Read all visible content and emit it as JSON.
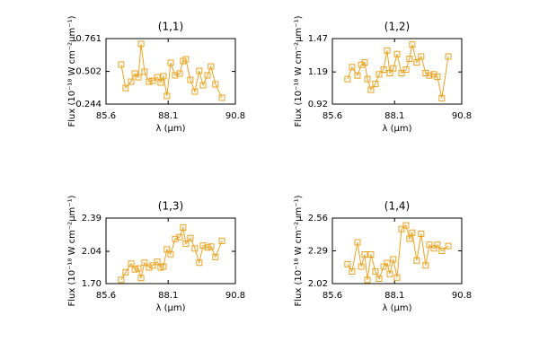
{
  "chart_data": [
    {
      "type": "line",
      "title": "(1,1)",
      "xlabel": "λ (μm)",
      "ylabel": "Flux (10⁻¹⁸ W cm⁻²μm⁻¹)",
      "color": "#eba21e",
      "x": [
        86.21,
        86.39,
        86.61,
        86.76,
        86.9,
        87.01,
        87.15,
        87.33,
        87.48,
        87.66,
        87.8,
        87.91,
        88.05,
        88.2,
        88.38,
        88.56,
        88.7,
        88.81,
        88.99,
        89.17,
        89.35,
        89.5,
        89.68,
        89.82,
        90.0,
        90.26
      ],
      "values": [
        0.556,
        0.371,
        0.421,
        0.485,
        0.456,
        0.719,
        0.499,
        0.421,
        0.428,
        0.456,
        0.414,
        0.464,
        0.308,
        0.57,
        0.471,
        0.485,
        0.584,
        0.598,
        0.435,
        0.343,
        0.506,
        0.393,
        0.471,
        0.541,
        0.4,
        0.294
      ],
      "xlim": [
        85.6,
        90.8
      ],
      "xticks": [
        85.6,
        88.1,
        90.8
      ],
      "ylim": [
        0.244,
        0.761
      ],
      "yticks": [
        0.244,
        0.502,
        0.761
      ]
    },
    {
      "type": "line",
      "title": "(1,2)",
      "xlabel": "λ (μm)",
      "ylabel": "Flux (10⁻¹⁸ W cm⁻²μm⁻¹)",
      "color": "#eba21e",
      "x": [
        86.21,
        86.39,
        86.61,
        86.76,
        86.9,
        87.01,
        87.15,
        87.33,
        87.48,
        87.66,
        87.8,
        87.91,
        88.05,
        88.2,
        88.38,
        88.56,
        88.7,
        88.81,
        88.99,
        89.17,
        89.35,
        89.5,
        89.68,
        89.82,
        90.0,
        90.26
      ],
      "values": [
        1.13,
        1.23,
        1.16,
        1.25,
        1.27,
        1.13,
        1.04,
        1.09,
        1.17,
        1.21,
        1.37,
        1.18,
        1.22,
        1.34,
        1.18,
        1.21,
        1.3,
        1.42,
        1.27,
        1.32,
        1.18,
        1.16,
        1.17,
        1.15,
        0.97,
        1.32
      ],
      "xlim": [
        85.6,
        90.8
      ],
      "xticks": [
        85.6,
        88.1,
        90.8
      ],
      "ylim": [
        0.92,
        1.47
      ],
      "yticks": [
        0.92,
        1.19,
        1.47
      ]
    },
    {
      "type": "line",
      "title": "(1,3)",
      "xlabel": "λ (μm)",
      "ylabel": "Flux (10⁻¹⁸ W cm⁻²μm⁻¹)",
      "color": "#eba21e",
      "x": [
        86.21,
        86.39,
        86.61,
        86.76,
        86.9,
        87.01,
        87.15,
        87.33,
        87.48,
        87.66,
        87.8,
        87.91,
        88.05,
        88.2,
        88.38,
        88.56,
        88.7,
        88.81,
        88.99,
        89.17,
        89.35,
        89.5,
        89.68,
        89.82,
        90.0,
        90.26
      ],
      "values": [
        1.74,
        1.82,
        1.91,
        1.85,
        1.86,
        1.76,
        1.92,
        1.87,
        1.89,
        1.93,
        1.87,
        1.88,
        2.06,
        2.01,
        2.17,
        2.19,
        2.29,
        2.12,
        2.18,
        2.07,
        1.92,
        2.1,
        2.08,
        2.09,
        1.98,
        2.15
      ],
      "xlim": [
        85.6,
        90.8
      ],
      "xticks": [
        85.6,
        88.1,
        90.8
      ],
      "ylim": [
        1.7,
        2.39
      ],
      "yticks": [
        {
          "value": 1.7,
          "label": "1.70"
        },
        2.04,
        2.39
      ]
    },
    {
      "type": "line",
      "title": "(1,4)",
      "xlabel": "λ (μm)",
      "ylabel": "Flux (10⁻¹⁸ W cm⁻²μm⁻¹)",
      "color": "#eba21e",
      "x": [
        86.21,
        86.39,
        86.61,
        86.76,
        86.9,
        87.01,
        87.15,
        87.33,
        87.48,
        87.66,
        87.8,
        87.91,
        88.05,
        88.2,
        88.38,
        88.56,
        88.7,
        88.81,
        88.99,
        89.17,
        89.35,
        89.5,
        89.68,
        89.82,
        90.0,
        90.26
      ],
      "values": [
        2.18,
        2.12,
        2.36,
        2.16,
        2.26,
        2.05,
        2.26,
        2.12,
        2.06,
        2.16,
        2.19,
        2.1,
        2.22,
        2.07,
        2.47,
        2.5,
        2.39,
        2.44,
        2.21,
        2.43,
        2.17,
        2.34,
        2.31,
        2.34,
        2.29,
        2.33
      ],
      "xlim": [
        85.6,
        90.8
      ],
      "xticks": [
        85.6,
        88.1,
        90.8
      ],
      "ylim": [
        2.02,
        2.56
      ],
      "yticks": [
        2.02,
        2.29,
        2.56
      ]
    }
  ]
}
